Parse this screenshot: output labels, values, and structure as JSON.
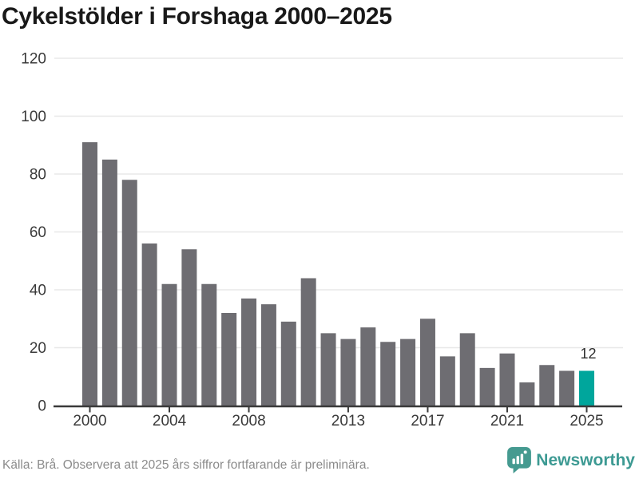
{
  "title": "Cykelstölder i Forshaga 2000–2025",
  "footer": {
    "source_note": "Källa: Brå. Observera att 2025 års siffror fortfarande är preliminära.",
    "brand": "Newsworthy"
  },
  "colors": {
    "bar": "#6e6d72",
    "highlight": "#00a69c",
    "grid": "#e8e8e8",
    "axis": "#3a3a3a",
    "title": "#191919",
    "footer_text": "#8b8b8b",
    "brand": "#3d9a93",
    "annotation": "#2e2e2e"
  },
  "chart_data": {
    "type": "bar",
    "title": "Cykelstölder i Forshaga 2000–2025",
    "categories": [
      2000,
      2001,
      2002,
      2003,
      2004,
      2005,
      2006,
      2007,
      2008,
      2009,
      2010,
      2011,
      2012,
      2013,
      2014,
      2015,
      2016,
      2017,
      2018,
      2019,
      2020,
      2021,
      2022,
      2023,
      2024,
      2025
    ],
    "values": [
      91,
      85,
      78,
      56,
      42,
      54,
      42,
      32,
      37,
      35,
      29,
      44,
      25,
      23,
      27,
      22,
      23,
      30,
      17,
      25,
      13,
      18,
      8,
      14,
      12,
      12
    ],
    "highlight_index": 25,
    "annotation": {
      "index": 25,
      "label": "12"
    },
    "xlabel": "",
    "ylabel": "",
    "ylim": [
      0,
      120
    ],
    "y_ticks": [
      0,
      20,
      40,
      60,
      80,
      100,
      120
    ],
    "x_tick_labels": [
      "2000",
      "2004",
      "2008",
      "2013",
      "2017",
      "2021",
      "2025"
    ],
    "grid": true,
    "legend": false
  }
}
